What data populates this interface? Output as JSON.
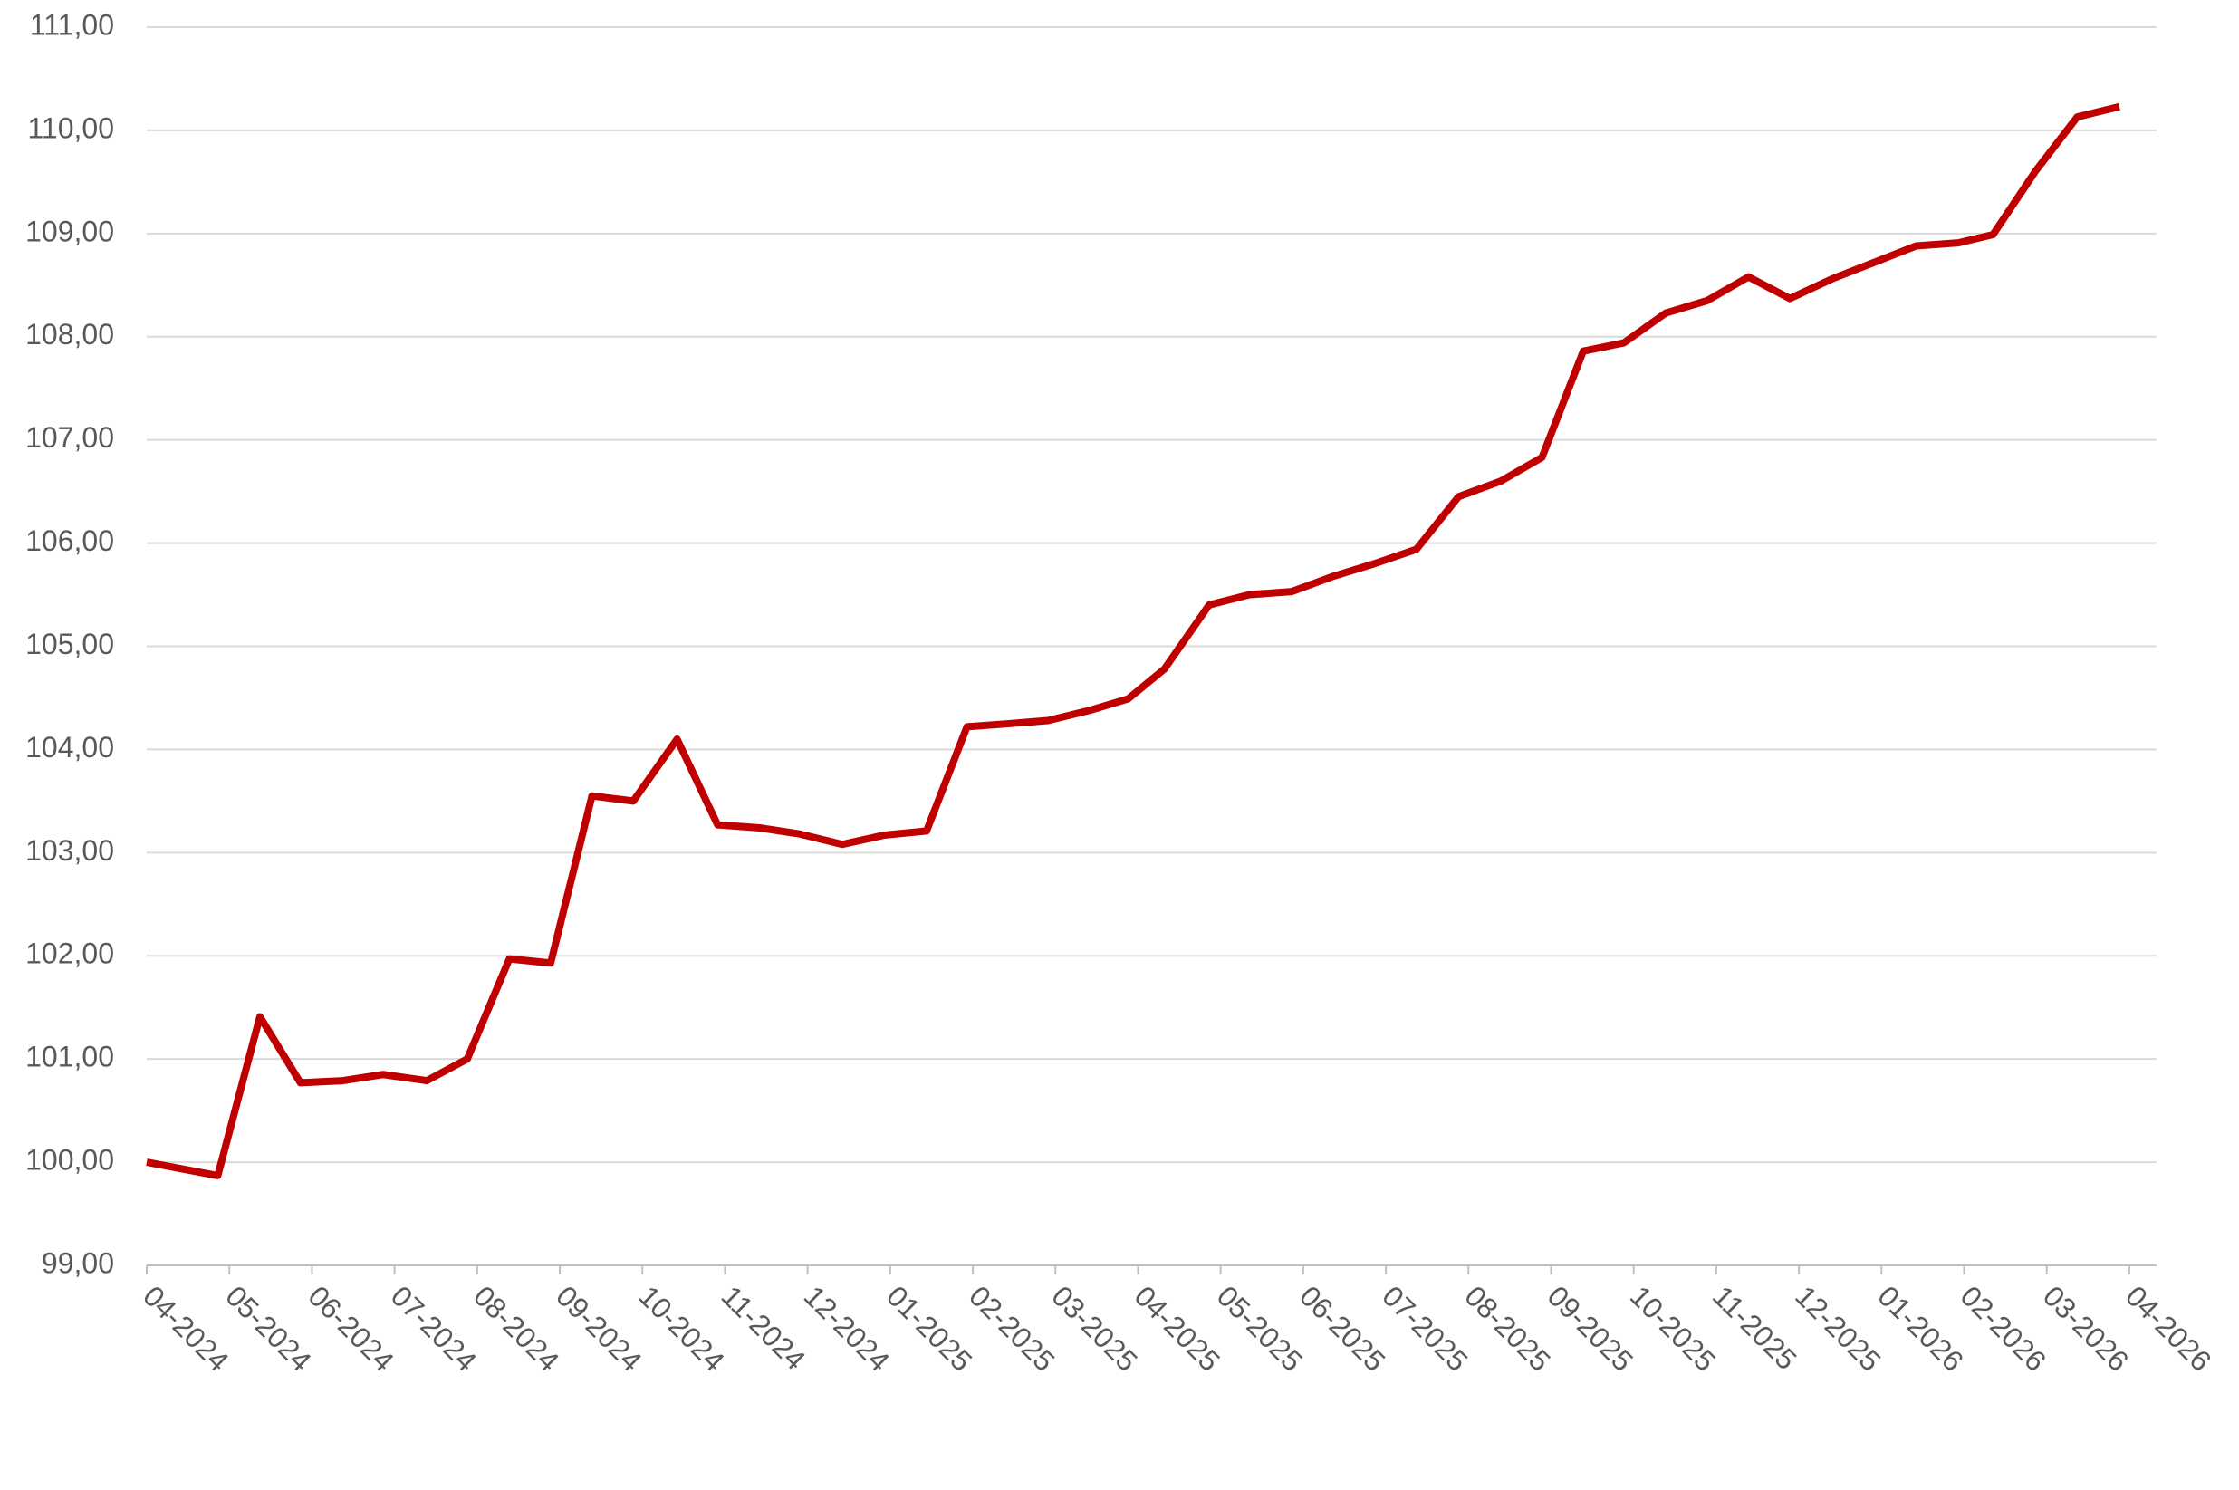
{
  "chart_data": {
    "type": "line",
    "x": [
      0,
      0.86,
      1.37,
      1.86,
      2.37,
      2.86,
      3.39,
      3.88,
      4.39,
      4.89,
      5.39,
      5.89,
      6.42,
      6.91,
      7.42,
      7.91,
      8.42,
      8.93,
      9.44,
      9.93,
      10.44,
      10.91,
      11.42,
      11.88,
      12.32,
      12.86,
      13.35,
      13.86,
      14.37,
      14.86,
      15.37,
      15.88,
      16.39,
      16.89,
      17.39,
      17.88,
      18.39,
      18.89,
      19.39,
      19.89,
      20.4,
      20.91,
      21.42,
      21.93,
      22.35,
      22.86,
      23.37,
      23.88
    ],
    "series": [
      {
        "color": "#c00000",
        "values": [
          100.0,
          99.87,
          101.41,
          100.77,
          100.79,
          100.85,
          100.79,
          101.0,
          101.97,
          101.93,
          103.55,
          103.5,
          104.1,
          103.27,
          103.24,
          103.18,
          103.08,
          103.17,
          103.21,
          104.22,
          104.25,
          104.28,
          104.38,
          104.49,
          104.78,
          105.4,
          105.5,
          105.53,
          105.68,
          105.8,
          105.94,
          106.45,
          106.6,
          106.83,
          107.86,
          107.94,
          108.23,
          108.35,
          108.58,
          108.37,
          108.56,
          108.72,
          108.88,
          108.91,
          108.99,
          109.6,
          110.13,
          110.23
        ]
      }
    ],
    "xlim": [
      0,
      24.33
    ],
    "xticks": [
      {
        "value": 0,
        "label": "04-2024"
      },
      {
        "value": 1,
        "label": "05-2024"
      },
      {
        "value": 2,
        "label": "06-2024"
      },
      {
        "value": 3,
        "label": "07-2024"
      },
      {
        "value": 4,
        "label": "08-2024"
      },
      {
        "value": 5,
        "label": "09-2024"
      },
      {
        "value": 6,
        "label": "10-2024"
      },
      {
        "value": 7,
        "label": "11-2024"
      },
      {
        "value": 8,
        "label": "12-2024"
      },
      {
        "value": 9,
        "label": "01-2025"
      },
      {
        "value": 10,
        "label": "02-2025"
      },
      {
        "value": 11,
        "label": "03-2025"
      },
      {
        "value": 12,
        "label": "04-2025"
      },
      {
        "value": 13,
        "label": "05-2025"
      },
      {
        "value": 14,
        "label": "06-2025"
      },
      {
        "value": 15,
        "label": "07-2025"
      },
      {
        "value": 16,
        "label": "08-2025"
      },
      {
        "value": 17,
        "label": "09-2025"
      },
      {
        "value": 18,
        "label": "10-2025"
      },
      {
        "value": 19,
        "label": "11-2025"
      },
      {
        "value": 20,
        "label": "12-2025"
      },
      {
        "value": 21,
        "label": "01-2026"
      },
      {
        "value": 22,
        "label": "02-2026"
      },
      {
        "value": 23,
        "label": "03-2026"
      },
      {
        "value": 24,
        "label": "04-2026"
      }
    ],
    "ylim": [
      99,
      111
    ],
    "yticks": [
      {
        "value": 99,
        "label": "99,00"
      },
      {
        "value": 100,
        "label": "100,00"
      },
      {
        "value": 101,
        "label": "101,00"
      },
      {
        "value": 102,
        "label": "102,00"
      },
      {
        "value": 103,
        "label": "103,00"
      },
      {
        "value": 104,
        "label": "104,00"
      },
      {
        "value": 105,
        "label": "105,00"
      },
      {
        "value": 106,
        "label": "106,00"
      },
      {
        "value": 107,
        "label": "107,00"
      },
      {
        "value": 108,
        "label": "108,00"
      },
      {
        "value": 109,
        "label": "109,00"
      },
      {
        "value": 110,
        "label": "110,00"
      },
      {
        "value": 111,
        "label": "111,00"
      }
    ],
    "grid": true
  }
}
